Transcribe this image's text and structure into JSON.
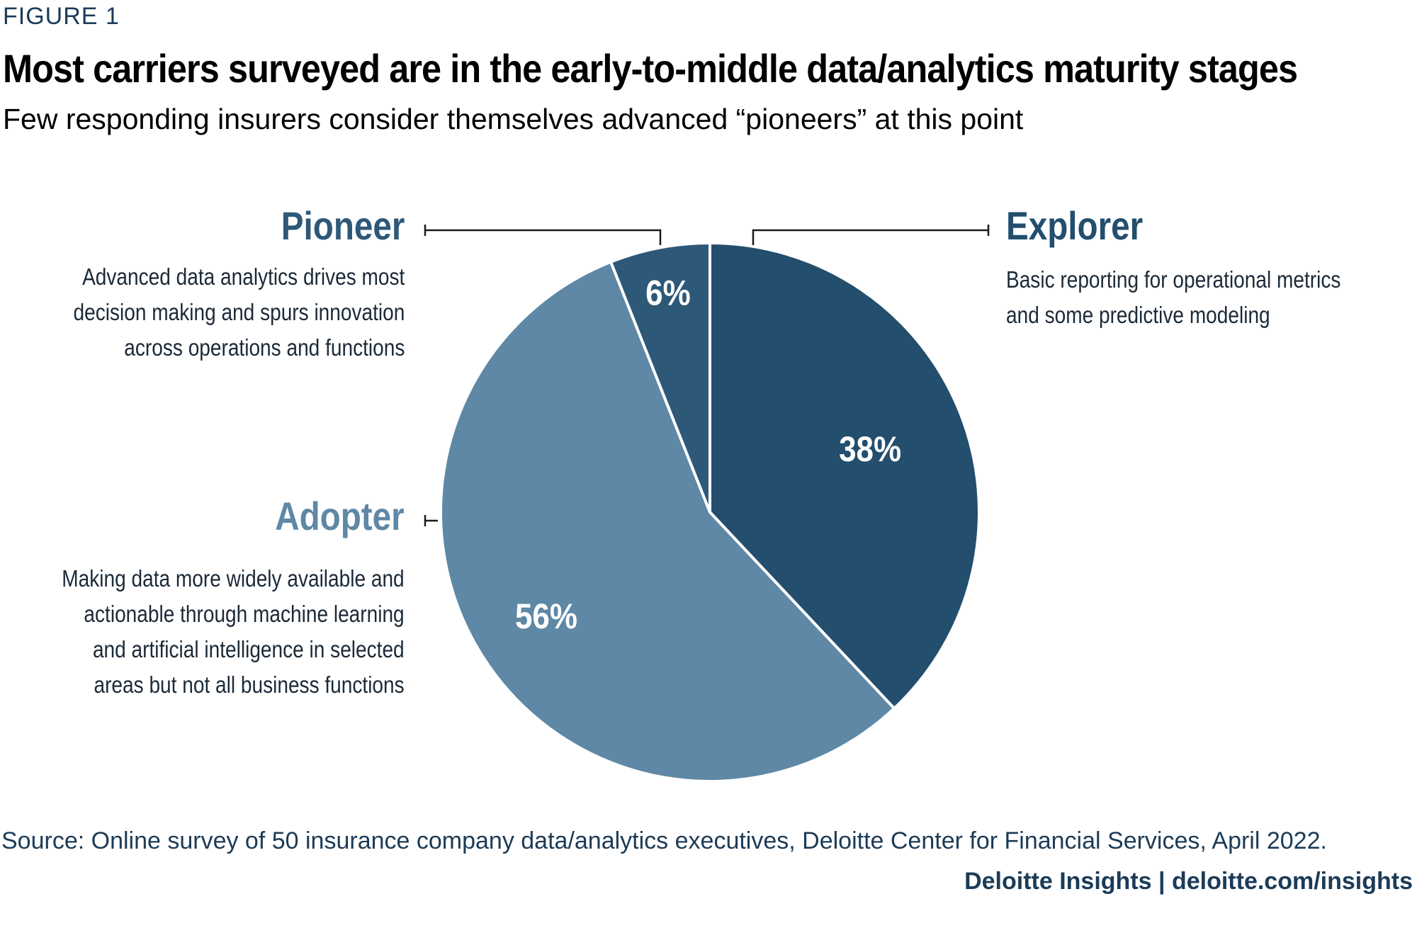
{
  "header": {
    "figure_label": "FIGURE 1",
    "title": "Most carriers surveyed are in the early-to-middle data/analytics maturity stages",
    "subtitle": "Few responding insurers consider themselves advanced “pioneers” at this point"
  },
  "chart_data": {
    "type": "pie",
    "slices": [
      {
        "name": "Explorer",
        "value": 38,
        "label": "38%",
        "color": "#234e6d",
        "description": "Basic reporting for operational metrics\nand some predictive modeling"
      },
      {
        "name": "Adopter",
        "value": 56,
        "label": "56%",
        "color": "#5e88a5",
        "description": "Making data more widely available and\nactionable through machine learning\nand artificial intelligence in selected\nareas but not all business functions"
      },
      {
        "name": "Pioneer",
        "value": 6,
        "label": "6%",
        "color": "#2e5878",
        "description": "Advanced data analytics drives most\ndecision making and spurs innovation\nacross operations and functions"
      }
    ],
    "start": "12 o'clock",
    "direction": "clockwise"
  },
  "footer": {
    "source": "Source: Online survey of 50 insurance company data/analytics executives, Deloitte Center for Financial Services, April 2022.",
    "credit": "Deloitte Insights | deloitte.com/insights"
  },
  "colors": {
    "title_dark": "#1c3b57",
    "explorer_label": "#234e6d",
    "adopter_label": "#5e88a5",
    "pioneer_label": "#2e5878",
    "divider": "#ffffff"
  }
}
